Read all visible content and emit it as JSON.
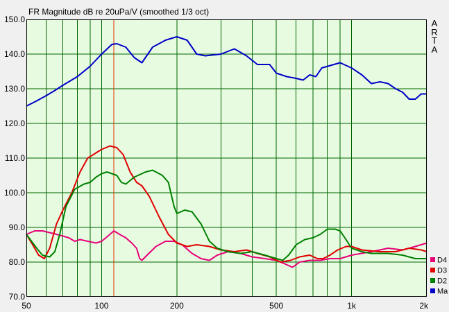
{
  "watermark": [
    "A",
    "R",
    "T",
    "A"
  ],
  "chart_data": {
    "type": "line",
    "title": "FR Magnitude dB re 20uPa/V (smoothed 1/3 oct)",
    "xscale": "log",
    "xlim": [
      50,
      2000
    ],
    "ylim": [
      70,
      150
    ],
    "yticks": [
      "70.0",
      "80.0",
      "90.0",
      "100.0",
      "110.0",
      "120.0",
      "130.0",
      "140.0",
      "150.0"
    ],
    "xticks": [
      {
        "value": 50,
        "label": "50"
      },
      {
        "value": 100,
        "label": "100"
      },
      {
        "value": 200,
        "label": "200"
      },
      {
        "value": 500,
        "label": "500"
      },
      {
        "value": 1000,
        "label": "1k"
      },
      {
        "value": 2000,
        "label": "2k"
      }
    ],
    "grid": true,
    "background": "#e6fbe0",
    "grid_color": "#006400",
    "marker": {
      "x": 112,
      "color": "#e03000"
    },
    "legend_position": "right-bottom",
    "series": [
      {
        "name": "Ma",
        "color": "#0000c8",
        "points": [
          [
            50,
            125
          ],
          [
            55,
            126.5
          ],
          [
            60,
            128
          ],
          [
            65,
            129.5
          ],
          [
            70,
            131
          ],
          [
            80,
            133.5
          ],
          [
            90,
            136.5
          ],
          [
            100,
            140
          ],
          [
            110,
            142.8
          ],
          [
            115,
            143
          ],
          [
            125,
            142
          ],
          [
            135,
            139
          ],
          [
            145,
            137.5
          ],
          [
            160,
            142
          ],
          [
            180,
            144
          ],
          [
            200,
            145
          ],
          [
            220,
            144
          ],
          [
            240,
            140
          ],
          [
            260,
            139.5
          ],
          [
            300,
            140
          ],
          [
            340,
            141.5
          ],
          [
            380,
            139.5
          ],
          [
            420,
            137
          ],
          [
            470,
            137
          ],
          [
            500,
            134.5
          ],
          [
            550,
            133.5
          ],
          [
            600,
            133
          ],
          [
            640,
            132.5
          ],
          [
            680,
            134
          ],
          [
            720,
            133.5
          ],
          [
            760,
            136
          ],
          [
            850,
            137
          ],
          [
            900,
            137.5
          ],
          [
            1000,
            136
          ],
          [
            1100,
            134
          ],
          [
            1200,
            131.5
          ],
          [
            1300,
            132
          ],
          [
            1400,
            131.5
          ],
          [
            1500,
            130
          ],
          [
            1600,
            129
          ],
          [
            1700,
            127
          ],
          [
            1800,
            127
          ],
          [
            1900,
            128.5
          ],
          [
            2000,
            128.5
          ]
        ]
      },
      {
        "name": "D2",
        "color": "#008000",
        "points": [
          [
            50,
            88
          ],
          [
            55,
            84
          ],
          [
            58,
            82
          ],
          [
            62,
            81.5
          ],
          [
            65,
            83
          ],
          [
            68,
            88
          ],
          [
            72,
            96
          ],
          [
            78,
            101
          ],
          [
            85,
            102.5
          ],
          [
            90,
            103
          ],
          [
            95,
            104.5
          ],
          [
            100,
            105.5
          ],
          [
            105,
            106
          ],
          [
            110,
            105.5
          ],
          [
            115,
            105
          ],
          [
            120,
            103
          ],
          [
            125,
            102.5
          ],
          [
            135,
            104.5
          ],
          [
            150,
            106
          ],
          [
            160,
            106.5
          ],
          [
            175,
            105
          ],
          [
            185,
            103
          ],
          [
            195,
            96
          ],
          [
            200,
            94
          ],
          [
            215,
            95
          ],
          [
            230,
            94.5
          ],
          [
            250,
            91
          ],
          [
            270,
            86
          ],
          [
            290,
            84
          ],
          [
            320,
            83
          ],
          [
            360,
            82.5
          ],
          [
            400,
            83
          ],
          [
            450,
            82
          ],
          [
            500,
            81
          ],
          [
            530,
            80.5
          ],
          [
            560,
            82
          ],
          [
            600,
            85
          ],
          [
            650,
            86.5
          ],
          [
            700,
            87
          ],
          [
            750,
            88
          ],
          [
            800,
            89.5
          ],
          [
            860,
            89.5
          ],
          [
            900,
            89
          ],
          [
            950,
            86.5
          ],
          [
            1000,
            84
          ],
          [
            1100,
            83
          ],
          [
            1200,
            82.5
          ],
          [
            1400,
            82.5
          ],
          [
            1600,
            82
          ],
          [
            1800,
            81
          ],
          [
            2000,
            81
          ]
        ]
      },
      {
        "name": "D3",
        "color": "#e00000",
        "points": [
          [
            50,
            88
          ],
          [
            53,
            85
          ],
          [
            56,
            82
          ],
          [
            59,
            81
          ],
          [
            62,
            84
          ],
          [
            66,
            91
          ],
          [
            70,
            95
          ],
          [
            76,
            100
          ],
          [
            82,
            106
          ],
          [
            88,
            110
          ],
          [
            95,
            111.5
          ],
          [
            100,
            112.5
          ],
          [
            108,
            113.5
          ],
          [
            115,
            113
          ],
          [
            122,
            111
          ],
          [
            130,
            106
          ],
          [
            138,
            103
          ],
          [
            145,
            102
          ],
          [
            155,
            99
          ],
          [
            170,
            93
          ],
          [
            185,
            88
          ],
          [
            200,
            85.5
          ],
          [
            220,
            84.5
          ],
          [
            240,
            85
          ],
          [
            270,
            84.5
          ],
          [
            300,
            83.5
          ],
          [
            340,
            83
          ],
          [
            380,
            83.5
          ],
          [
            420,
            82.5
          ],
          [
            470,
            81.5
          ],
          [
            520,
            80
          ],
          [
            570,
            80.5
          ],
          [
            620,
            81.5
          ],
          [
            680,
            82
          ],
          [
            730,
            81
          ],
          [
            770,
            81
          ],
          [
            820,
            82
          ],
          [
            880,
            83.5
          ],
          [
            950,
            84.5
          ],
          [
            1000,
            84.5
          ],
          [
            1100,
            83.5
          ],
          [
            1300,
            83
          ],
          [
            1500,
            83
          ],
          [
            1700,
            84
          ],
          [
            1900,
            83.5
          ],
          [
            2000,
            83
          ]
        ]
      },
      {
        "name": "D4",
        "color": "#e8007a",
        "points": [
          [
            50,
            88
          ],
          [
            54,
            89
          ],
          [
            58,
            89
          ],
          [
            62,
            88.5
          ],
          [
            66,
            88
          ],
          [
            70,
            87.5
          ],
          [
            74,
            87
          ],
          [
            78,
            86
          ],
          [
            82,
            86.5
          ],
          [
            88,
            86
          ],
          [
            95,
            85.5
          ],
          [
            100,
            86
          ],
          [
            106,
            87.5
          ],
          [
            112,
            89
          ],
          [
            118,
            88
          ],
          [
            125,
            87
          ],
          [
            132,
            85.5
          ],
          [
            138,
            84
          ],
          [
            142,
            81
          ],
          [
            145,
            80.5
          ],
          [
            152,
            82
          ],
          [
            165,
            84.5
          ],
          [
            180,
            86
          ],
          [
            195,
            86
          ],
          [
            210,
            85
          ],
          [
            230,
            82.5
          ],
          [
            250,
            81
          ],
          [
            270,
            80.5
          ],
          [
            290,
            82
          ],
          [
            320,
            83
          ],
          [
            360,
            82.5
          ],
          [
            400,
            81.5
          ],
          [
            450,
            81
          ],
          [
            500,
            80.5
          ],
          [
            540,
            79.5
          ],
          [
            580,
            78.5
          ],
          [
            620,
            80
          ],
          [
            680,
            80.5
          ],
          [
            750,
            80.5
          ],
          [
            820,
            81
          ],
          [
            900,
            81
          ],
          [
            1000,
            82
          ],
          [
            1200,
            83
          ],
          [
            1400,
            84
          ],
          [
            1600,
            83.5
          ],
          [
            1800,
            84.5
          ],
          [
            2000,
            85.5
          ]
        ]
      }
    ]
  }
}
